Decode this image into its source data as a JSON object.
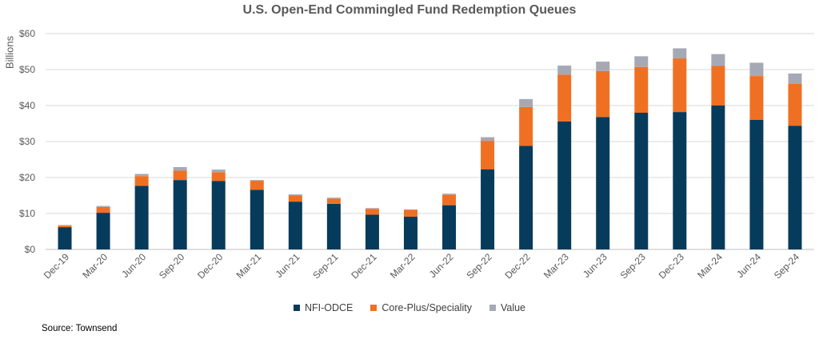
{
  "chart_data": {
    "type": "bar",
    "stacked": true,
    "title": "U.S. Open-End Commingled Fund Redemption Queues",
    "ylabel": "Billions",
    "xlabel": "",
    "ylim": [
      0,
      60
    ],
    "yticks": [
      "$0",
      "$10",
      "$20",
      "$30",
      "$40",
      "$50",
      "$60"
    ],
    "grid": true,
    "legend_position": "bottom",
    "categories": [
      "Dec-19",
      "Mar-20",
      "Jun-20",
      "Sep-20",
      "Dec-20",
      "Mar-21",
      "Jun-21",
      "Sep-21",
      "Dec-21",
      "Mar-22",
      "Jun-22",
      "Sep-22",
      "Dec-22",
      "Mar-23",
      "Jun-23",
      "Sep-23",
      "Dec-23",
      "Mar-24",
      "Jun-24",
      "Sep-24"
    ],
    "series": [
      {
        "name": "NFI-ODCE",
        "color": "#073b5c",
        "values": [
          6.2,
          10.2,
          17.7,
          19.3,
          19.0,
          16.6,
          13.3,
          12.7,
          9.7,
          9.1,
          12.3,
          22.3,
          28.8,
          35.6,
          36.8,
          38.0,
          38.2,
          40.0,
          36.0,
          34.4
        ]
      },
      {
        "name": "Core-Plus/Speciality",
        "color": "#f07023",
        "values": [
          0.4,
          1.6,
          2.7,
          2.6,
          2.5,
          2.5,
          1.7,
          1.4,
          1.6,
          1.9,
          2.9,
          7.9,
          10.8,
          13.0,
          12.8,
          12.7,
          14.9,
          11.0,
          12.2,
          11.6
        ]
      },
      {
        "name": "Value",
        "color": "#a5a9b5",
        "values": [
          0.2,
          0.3,
          0.6,
          1.0,
          0.7,
          0.2,
          0.3,
          0.3,
          0.2,
          0.1,
          0.3,
          1.0,
          2.2,
          2.5,
          2.6,
          3.0,
          2.8,
          3.3,
          3.7,
          2.9
        ]
      }
    ],
    "source": "Source: Townsend"
  }
}
